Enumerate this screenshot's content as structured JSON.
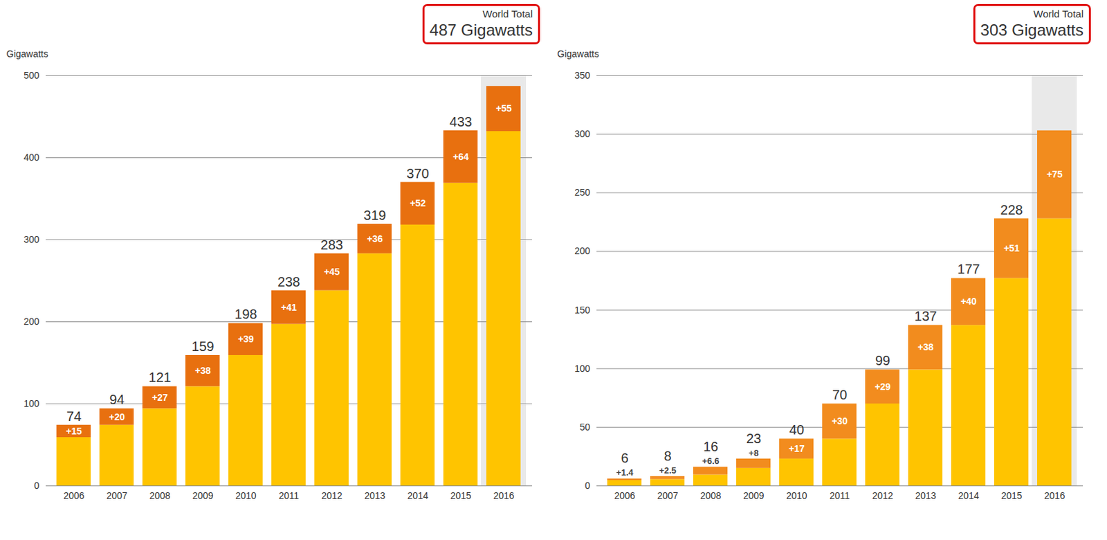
{
  "chart_data": [
    {
      "type": "bar",
      "stacked": true,
      "grid": true,
      "data_labels": true,
      "title": "World Total",
      "subtitle": "487 Gigawatts",
      "y_label": "Gigawatts",
      "categories": [
        "2006",
        "2007",
        "2008",
        "2009",
        "2010",
        "2011",
        "2012",
        "2013",
        "2014",
        "2015",
        "2016"
      ],
      "series": [
        {
          "color": "#ffc400",
          "values": [
            59,
            74,
            94,
            121,
            159,
            197,
            238,
            283,
            318,
            369,
            432
          ]
        },
        {
          "color": "#e8700f",
          "values": [
            15,
            20,
            27,
            38,
            39,
            41,
            45,
            36,
            52,
            64,
            55
          ],
          "value_labels": [
            "+15",
            "+20",
            "+27",
            "+38",
            "+39",
            "+41",
            "+45",
            "+36",
            "+52",
            "+64",
            "+55"
          ]
        }
      ],
      "totals": [
        74,
        94,
        121,
        159,
        198,
        238,
        283,
        319,
        370,
        433,
        null
      ],
      "ylim": [
        0,
        500
      ],
      "yticks": [
        0,
        100,
        200,
        300,
        400,
        500
      ]
    },
    {
      "type": "bar",
      "stacked": true,
      "grid": true,
      "data_labels": true,
      "title": "World Total",
      "subtitle": "303 Gigawatts",
      "y_label": "Gigawatts",
      "categories": [
        "2006",
        "2007",
        "2008",
        "2009",
        "2010",
        "2011",
        "2012",
        "2013",
        "2014",
        "2015",
        "2016"
      ],
      "series": [
        {
          "color": "#ffc400",
          "values": [
            4.6,
            5.5,
            9.4,
            15,
            23,
            40,
            70,
            99,
            137,
            177,
            228
          ]
        },
        {
          "color": "#f28c1e",
          "values": [
            1.4,
            2.5,
            6.6,
            8,
            17,
            30,
            29,
            38,
            40,
            51,
            75
          ],
          "value_labels": [
            "+1.4",
            "+2.5",
            "+6.6",
            "+8",
            "+17",
            "+30",
            "+29",
            "+38",
            "+40",
            "+51",
            "+75"
          ]
        }
      ],
      "totals": [
        6,
        8,
        16,
        23,
        40,
        70,
        99,
        137,
        177,
        228,
        null
      ],
      "ylim": [
        0,
        350
      ],
      "yticks": [
        0,
        50,
        100,
        150,
        200,
        250,
        300,
        350
      ]
    }
  ]
}
